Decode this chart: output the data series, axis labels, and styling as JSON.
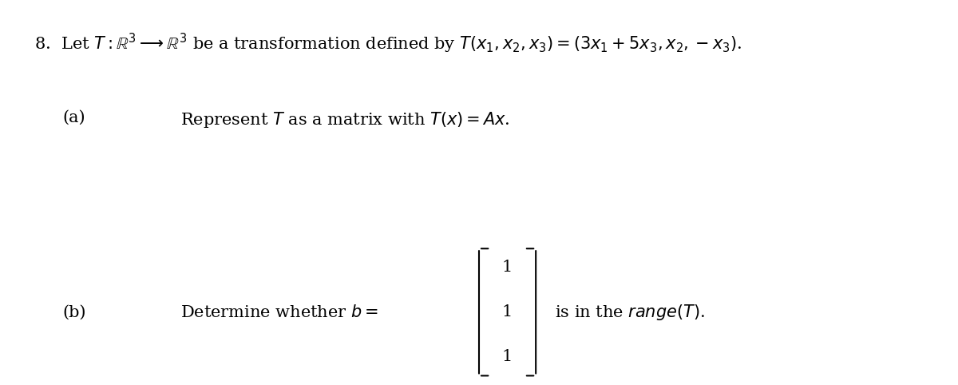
{
  "background_color": "#ffffff",
  "figsize": [
    12.0,
    4.82
  ],
  "dpi": 100,
  "main_text": "8.  Let $T : \\mathbb{R}^3 \\longrightarrow \\mathbb{R}^3$ be a transformation defined by $T(x_1, x_2, x_3) = (3x_1 + 5x_3, x_2, -x_3)$.",
  "part_a_label": "(a)",
  "part_a_text": "Represent $T$ as a matrix with $T(x) = Ax$.",
  "part_b_label": "(b)",
  "part_b_text_before": "Determine whether $b = $",
  "part_b_text_after": "is in the $\\mathit{range}(T)$.",
  "vector_values": [
    "1",
    "1",
    "1"
  ],
  "main_fontsize": 15,
  "sub_fontsize": 15,
  "text_color": "#000000",
  "font_family": "serif"
}
